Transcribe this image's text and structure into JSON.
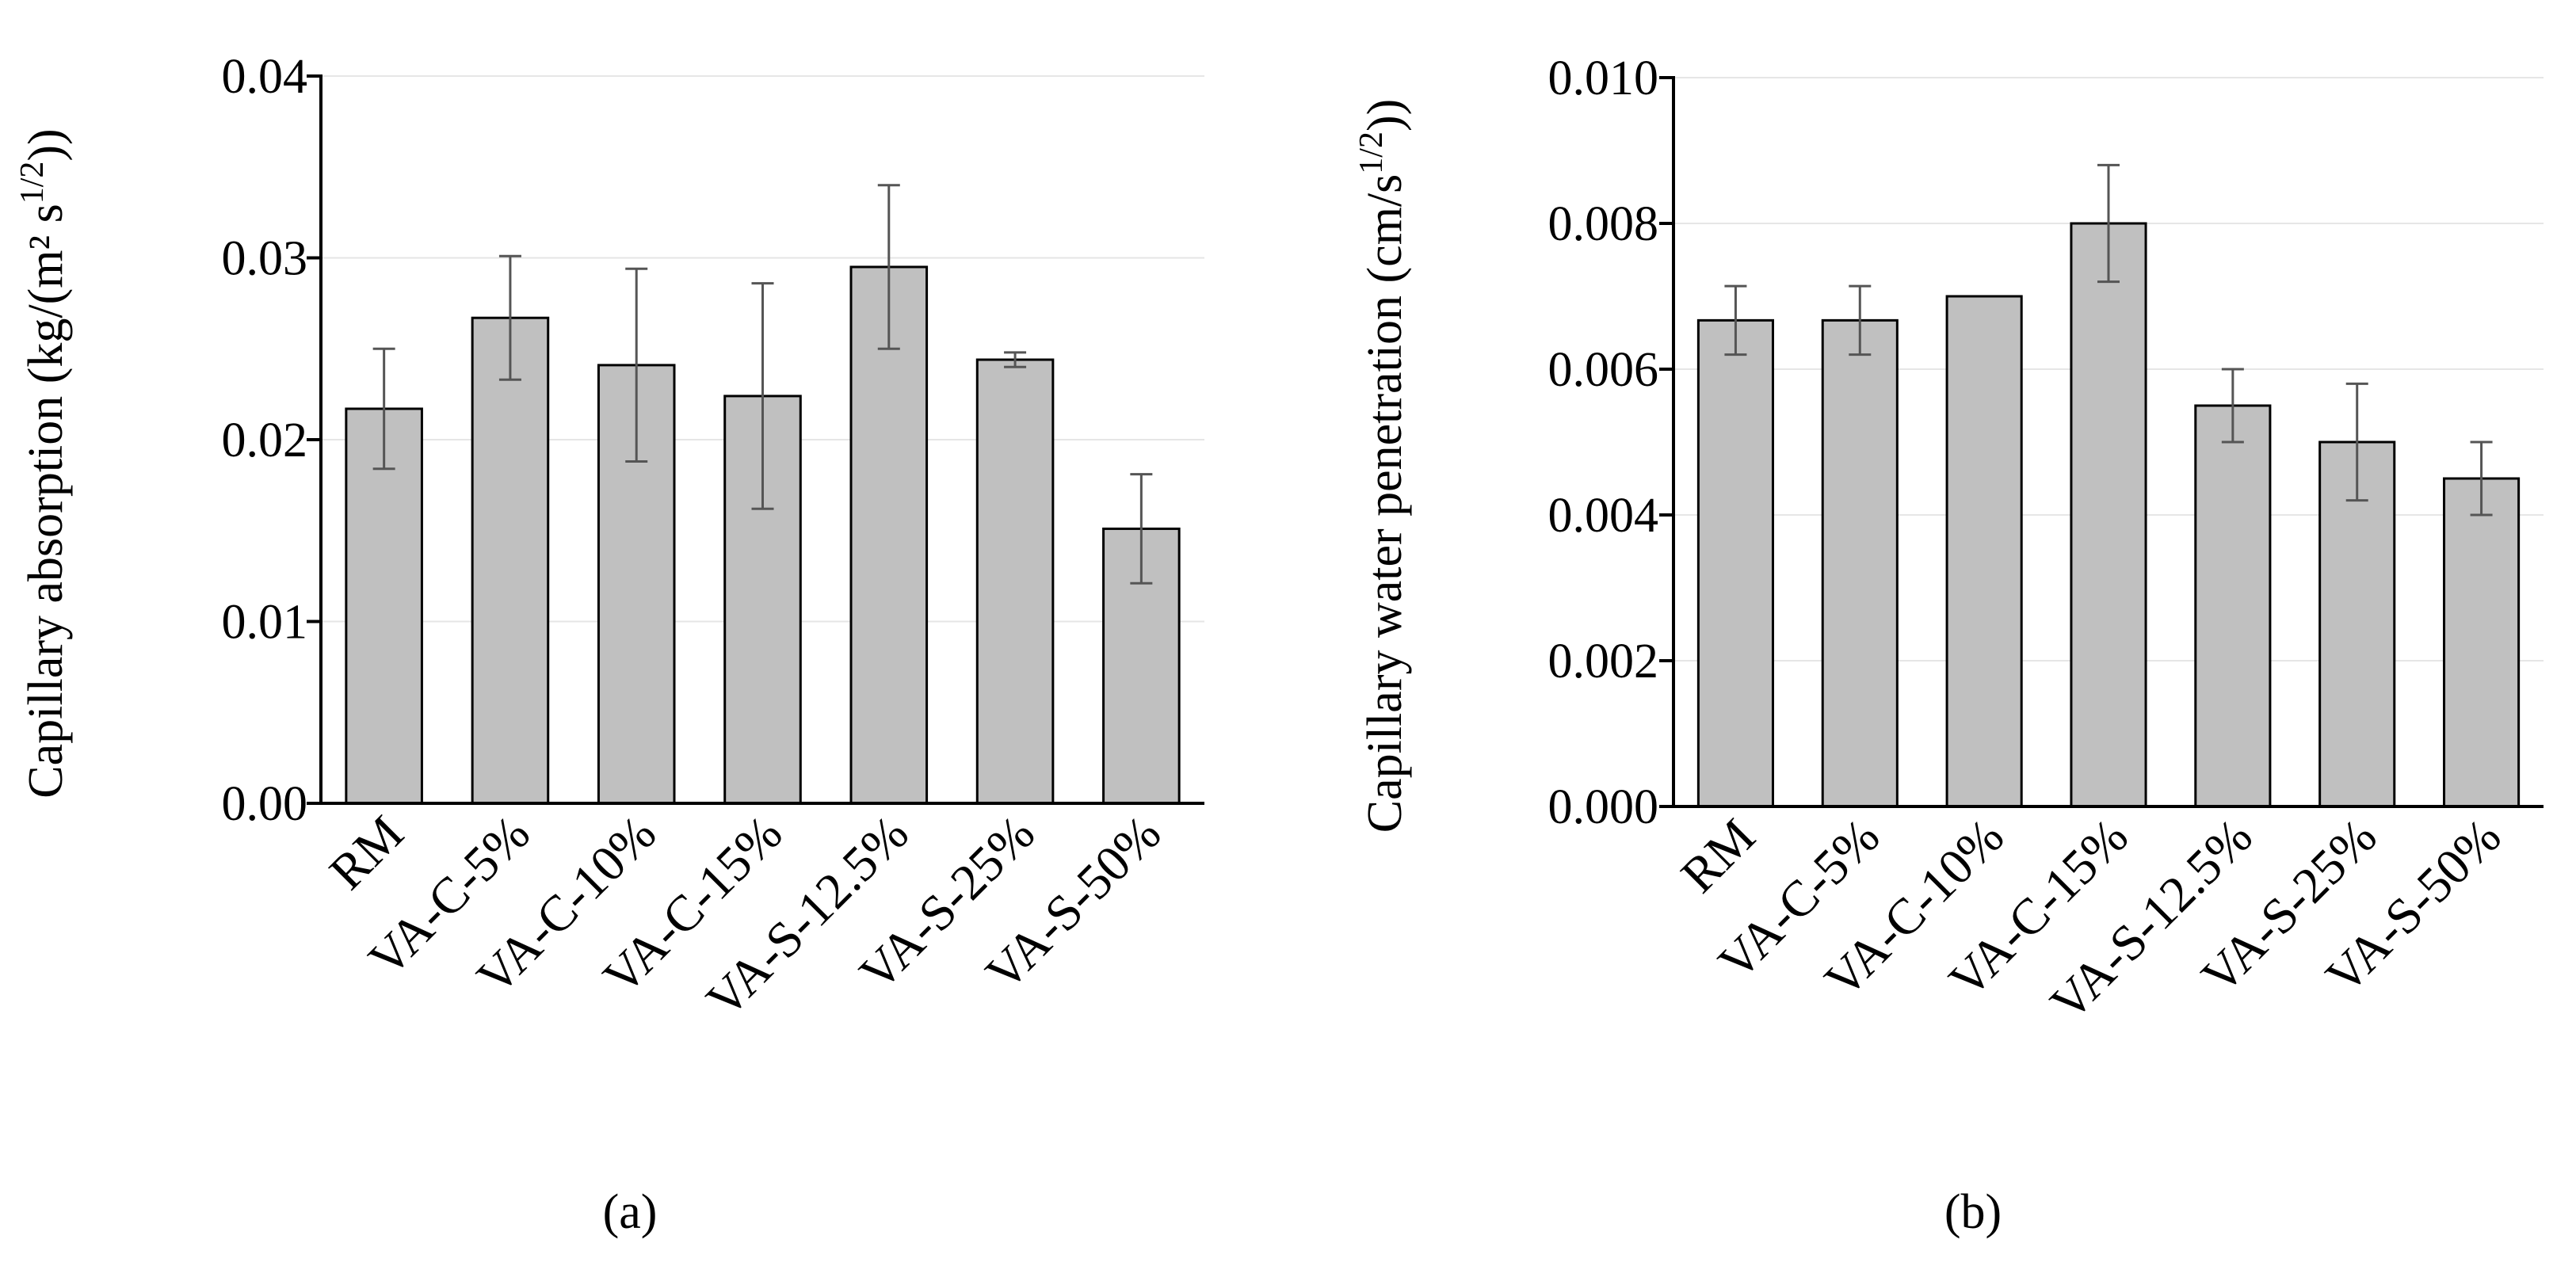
{
  "colors": {
    "bar": "#c0c0c0",
    "error_bar": "#555555",
    "axis": "#000000",
    "grid": "#e6e6e6"
  },
  "chart_data": [
    {
      "type": "bar",
      "caption": "(a)",
      "ylabel": "Capillary absorption (kg/(m² s",
      "ylabel_sup": "1/2",
      "ylabel_end": "))",
      "categories": [
        "RM",
        "VA-C-5%",
        "VA-C-10%",
        "VA-C-15%",
        "VA-S-12.5%",
        "VA-S-25%",
        "VA-S-50%"
      ],
      "values": [
        0.0217,
        0.0267,
        0.0241,
        0.0224,
        0.0295,
        0.0244,
        0.0151
      ],
      "errors": [
        0.0033,
        0.0034,
        0.0053,
        0.0062,
        0.0045,
        0.0004,
        0.003
      ],
      "ylim": [
        0,
        0.04
      ],
      "yticks": [
        "0.00",
        "0.01",
        "0.02",
        "0.03",
        "0.04"
      ],
      "grid": true
    },
    {
      "type": "bar",
      "caption": "(b)",
      "ylabel": "Capillary water penetration (cm/s",
      "ylabel_sup": "1/2",
      "ylabel_end": "))",
      "categories": [
        "RM",
        "VA-C-5%",
        "VA-C-10%",
        "VA-C-15%",
        "VA-S-12.5%",
        "VA-S-25%",
        "VA-S-50%"
      ],
      "values": [
        0.00667,
        0.00667,
        0.007,
        0.008,
        0.0055,
        0.005,
        0.0045
      ],
      "errors": [
        0.00047,
        0.00047,
        0.0,
        0.0008,
        0.0005,
        0.0008,
        0.0005
      ],
      "ylim": [
        0,
        0.01
      ],
      "yticks": [
        "0.000",
        "0.002",
        "0.004",
        "0.006",
        "0.008",
        "0.010"
      ],
      "grid": true
    }
  ]
}
